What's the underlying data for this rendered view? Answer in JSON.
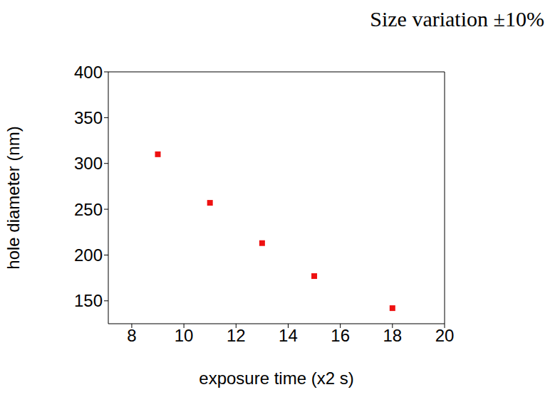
{
  "chart_data": {
    "type": "scatter",
    "title": "Size variation ±10%",
    "x_label": "exposure time (x2 s)",
    "y_label": "hole diameter (nm)",
    "x": [
      9,
      11,
      13,
      15,
      18
    ],
    "values": [
      310,
      257,
      213,
      177,
      142
    ],
    "color": "#ee1111",
    "marker": "square",
    "xlim": [
      7.1,
      20
    ],
    "xticks": [
      8,
      10,
      12,
      14,
      16,
      18,
      20
    ],
    "ylim": [
      125,
      400
    ],
    "yticks": [
      150,
      200,
      250,
      300,
      350,
      400
    ],
    "grid": false
  }
}
